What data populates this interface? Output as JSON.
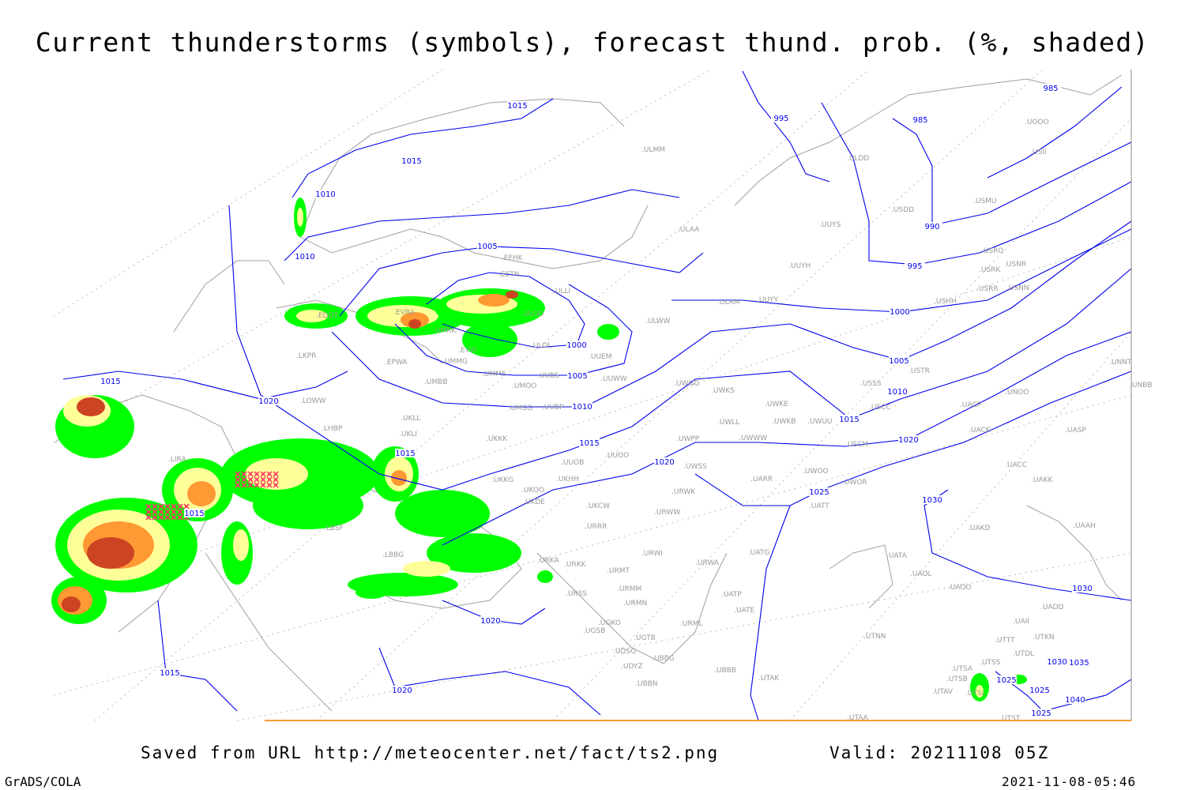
{
  "title": "Current thunderstorms (symbols), forecast thund. prob. (%, shaded)",
  "footer": {
    "source": "Saved from URL http://meteocenter.net/fact/ts2.png",
    "valid": "Valid: 20211108 05Z",
    "software": "GrADS/COLA",
    "timestamp": "2021-11-08-05:46"
  },
  "colors": {
    "isobar": "#0000ee",
    "coastline": "#a0a0a0",
    "prob_low": "#00ff00",
    "prob_mid": "#ffff99",
    "prob_high": "#ff9933",
    "prob_max": "#cc4422",
    "thunderstorm_symbol": "#ff3366"
  },
  "isobar_labels": [
    "1015",
    "1015",
    "1010",
    "1010",
    "1005",
    "1000",
    "1005",
    "1010",
    "1015",
    "1020",
    "1015",
    "1015",
    "1015",
    "1020",
    "1025",
    "1030",
    "1030",
    "995",
    "985",
    "985",
    "990",
    "995",
    "1000",
    "1005",
    "1010",
    "1015",
    "1020",
    "1020",
    "1020",
    "1015",
    "1025",
    "1025",
    "1025",
    "1030",
    "1035",
    "1040"
  ],
  "stations": [
    "EFHK",
    "EETN",
    "ULLI",
    "ULOD",
    "EVRA",
    "UMKK",
    "EYVI",
    "UMMG",
    "EPWA",
    "LKPR",
    "EDDT",
    "UMBB",
    "UMMS",
    "UMOO",
    "UUBS",
    "UUWW",
    "UUEM",
    "ULOL",
    "UMGG",
    "UUBP",
    "LOWW",
    "LHBP",
    "UKLL",
    "UKLI",
    "UKKK",
    "LIRA",
    "UUOO",
    "UUOB",
    "UKKG",
    "UKOO",
    "UKHH",
    "UKDE",
    "UKCW",
    "URRR",
    "LBSF",
    "LBBG",
    "URKA",
    "URKK",
    "URWI",
    "URMT",
    "URSS",
    "URMM",
    "URMN",
    "UGKO",
    "UGSB",
    "UGTB",
    "UDSG",
    "UBBG",
    "UDYZ",
    "UBBN",
    "URML",
    "URWA",
    "UATG",
    "UATE",
    "UATP",
    "UBBB",
    "UTAK",
    "UWPP",
    "UWWW",
    "UWSS",
    "UWLL",
    "UWKE",
    "UWKB",
    "UWUU",
    "UWKS",
    "UWGG",
    "UARR",
    "UWOO",
    "UWOR",
    "UATT",
    "URWW",
    "URWK",
    "UUYY",
    "ULAM",
    "ULWW",
    "ULAA",
    "UUYH",
    "UUYS",
    "ULDD",
    "ULMM",
    "USDD",
    "USMU",
    "USII",
    "UOOO",
    "USRO",
    "USRK",
    "USNR",
    "USRR",
    "USNN",
    "USHH",
    "USTR",
    "USSS",
    "UNOO",
    "USCC",
    "UACP",
    "UACK",
    "USCM",
    "UASP",
    "UNBB",
    "UNNT",
    "UACC",
    "UAKK",
    "UAAH",
    "UAKD",
    "UATA",
    "UAOL",
    "UAOO",
    "UADD",
    "UAII",
    "UTNN",
    "UTTT",
    "UTKN",
    "UTDL",
    "UTSA",
    "UTSS",
    "UTSB",
    "UTAV",
    "UTSL",
    "UTST",
    "UTAA"
  ]
}
